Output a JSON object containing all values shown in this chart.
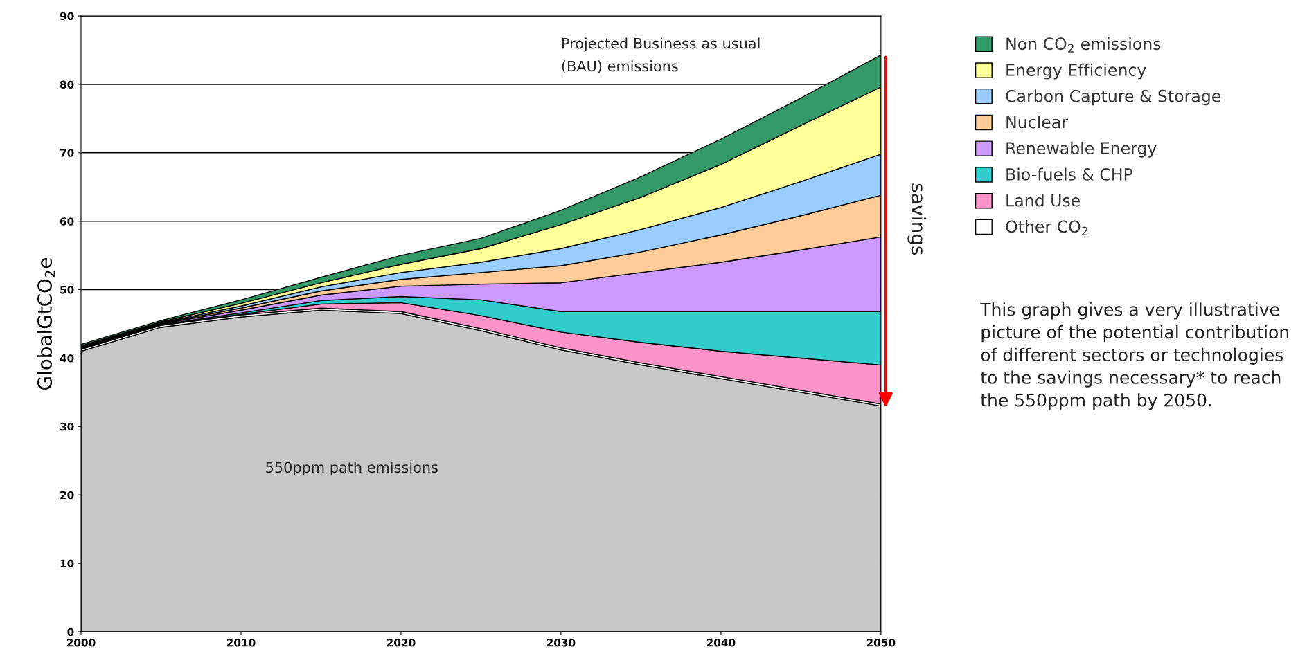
{
  "chart_data": {
    "type": "area",
    "stacked": true,
    "ylabel": "GlobalGtCO$_{2}$e",
    "x": [
      2000,
      2005,
      2010,
      2015,
      2020,
      2025,
      2030,
      2035,
      2040,
      2045,
      2050
    ],
    "xlim": [
      2000,
      2050
    ],
    "xticks": [
      2000,
      2010,
      2020,
      2030,
      2040,
      2050
    ],
    "ylim": [
      0,
      90
    ],
    "yticks": [
      0,
      10,
      20,
      30,
      40,
      50,
      60,
      70,
      80,
      90
    ],
    "grid": "y",
    "legend": "right",
    "series": [
      {
        "color": "#c8c8c8",
        "values": [
          41,
          44.5,
          46,
          47,
          46.5,
          44,
          41.2,
          39,
          37,
          35,
          33
        ]
      },
      {
        "name": "Other CO$_{2}$",
        "color": "#ffffff",
        "values": [
          0.3,
          0.3,
          0.3,
          0.3,
          0.3,
          0.3,
          0.3,
          0.3,
          0.3,
          0.3,
          0.3
        ]
      },
      {
        "name": "Land Use",
        "color": "#f993c8",
        "values": [
          0,
          0,
          0.1,
          0.6,
          1.3,
          1.9,
          2.3,
          3.0,
          3.7,
          4.7,
          5.7
        ]
      },
      {
        "name": "Bio-fuels & CHP",
        "color": "#33cccc",
        "values": [
          0.1,
          0.1,
          0.2,
          0.5,
          0.9,
          2.3,
          3.0,
          4.5,
          5.8,
          6.8,
          7.8
        ]
      },
      {
        "name": "Renewable Energy",
        "color": "#cc99ff",
        "values": [
          0.1,
          0.1,
          0.4,
          0.8,
          1.5,
          2.3,
          4.2,
          5.7,
          7.2,
          9.0,
          10.9
        ]
      },
      {
        "name": "Nuclear",
        "color": "#ffcc99",
        "values": [
          0.1,
          0.1,
          0.3,
          0.6,
          1.0,
          1.7,
          2.5,
          3.0,
          4.0,
          5.0,
          6.1
        ]
      },
      {
        "name": "Carbon Capture & Storage",
        "color": "#99ccff",
        "values": [
          0.1,
          0.1,
          0.3,
          0.6,
          1.0,
          1.5,
          2.5,
          3.3,
          4.0,
          5.0,
          6.0
        ]
      },
      {
        "name": "Energy Efficiency",
        "color": "#ffff99",
        "values": [
          0.1,
          0.1,
          0.4,
          0.6,
          1.2,
          2.0,
          3.5,
          4.7,
          6.3,
          8.2,
          9.8
        ]
      },
      {
        "name": "Non CO$_{2}$ emissions",
        "color": "#339966",
        "values": [
          0.2,
          0.2,
          0.5,
          0.8,
          1.3,
          1.5,
          2.1,
          3.0,
          3.7,
          4.0,
          4.7
        ]
      }
    ],
    "annotations": [
      "550ppm path emissions",
      "Projected Business as usual\n(BAU) emissions",
      "savings",
      "This graph gives a very illustrative picture of the potential contribution of different sectors or technologies to the savings necessary* to reach the 550ppm path by 2050."
    ]
  }
}
